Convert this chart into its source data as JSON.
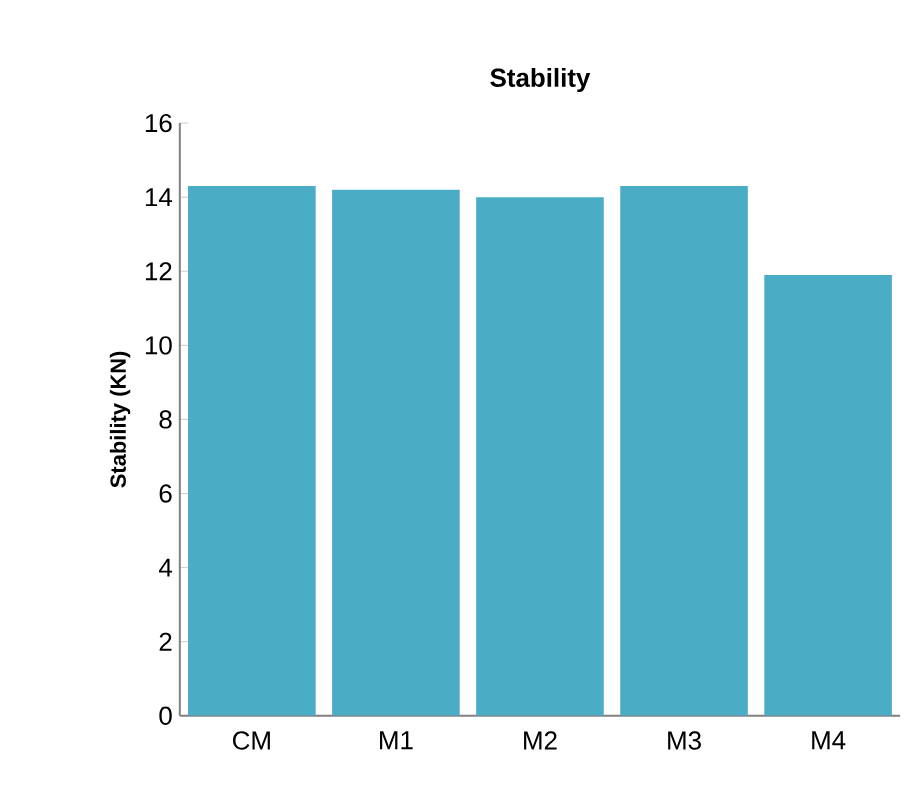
{
  "chart_data": {
    "type": "bar",
    "title": "Stability",
    "ylabel": "Stability (KN)",
    "categories": [
      "CM",
      "M1",
      "M2",
      "M3",
      "M4"
    ],
    "values": [
      14.3,
      14.2,
      14.0,
      14.3,
      11.9
    ],
    "color": "#4bacc6",
    "ylim": [
      0,
      16
    ],
    "yticks": [
      0,
      2,
      4,
      6,
      8,
      10,
      12,
      14,
      16
    ],
    "grid": false
  }
}
